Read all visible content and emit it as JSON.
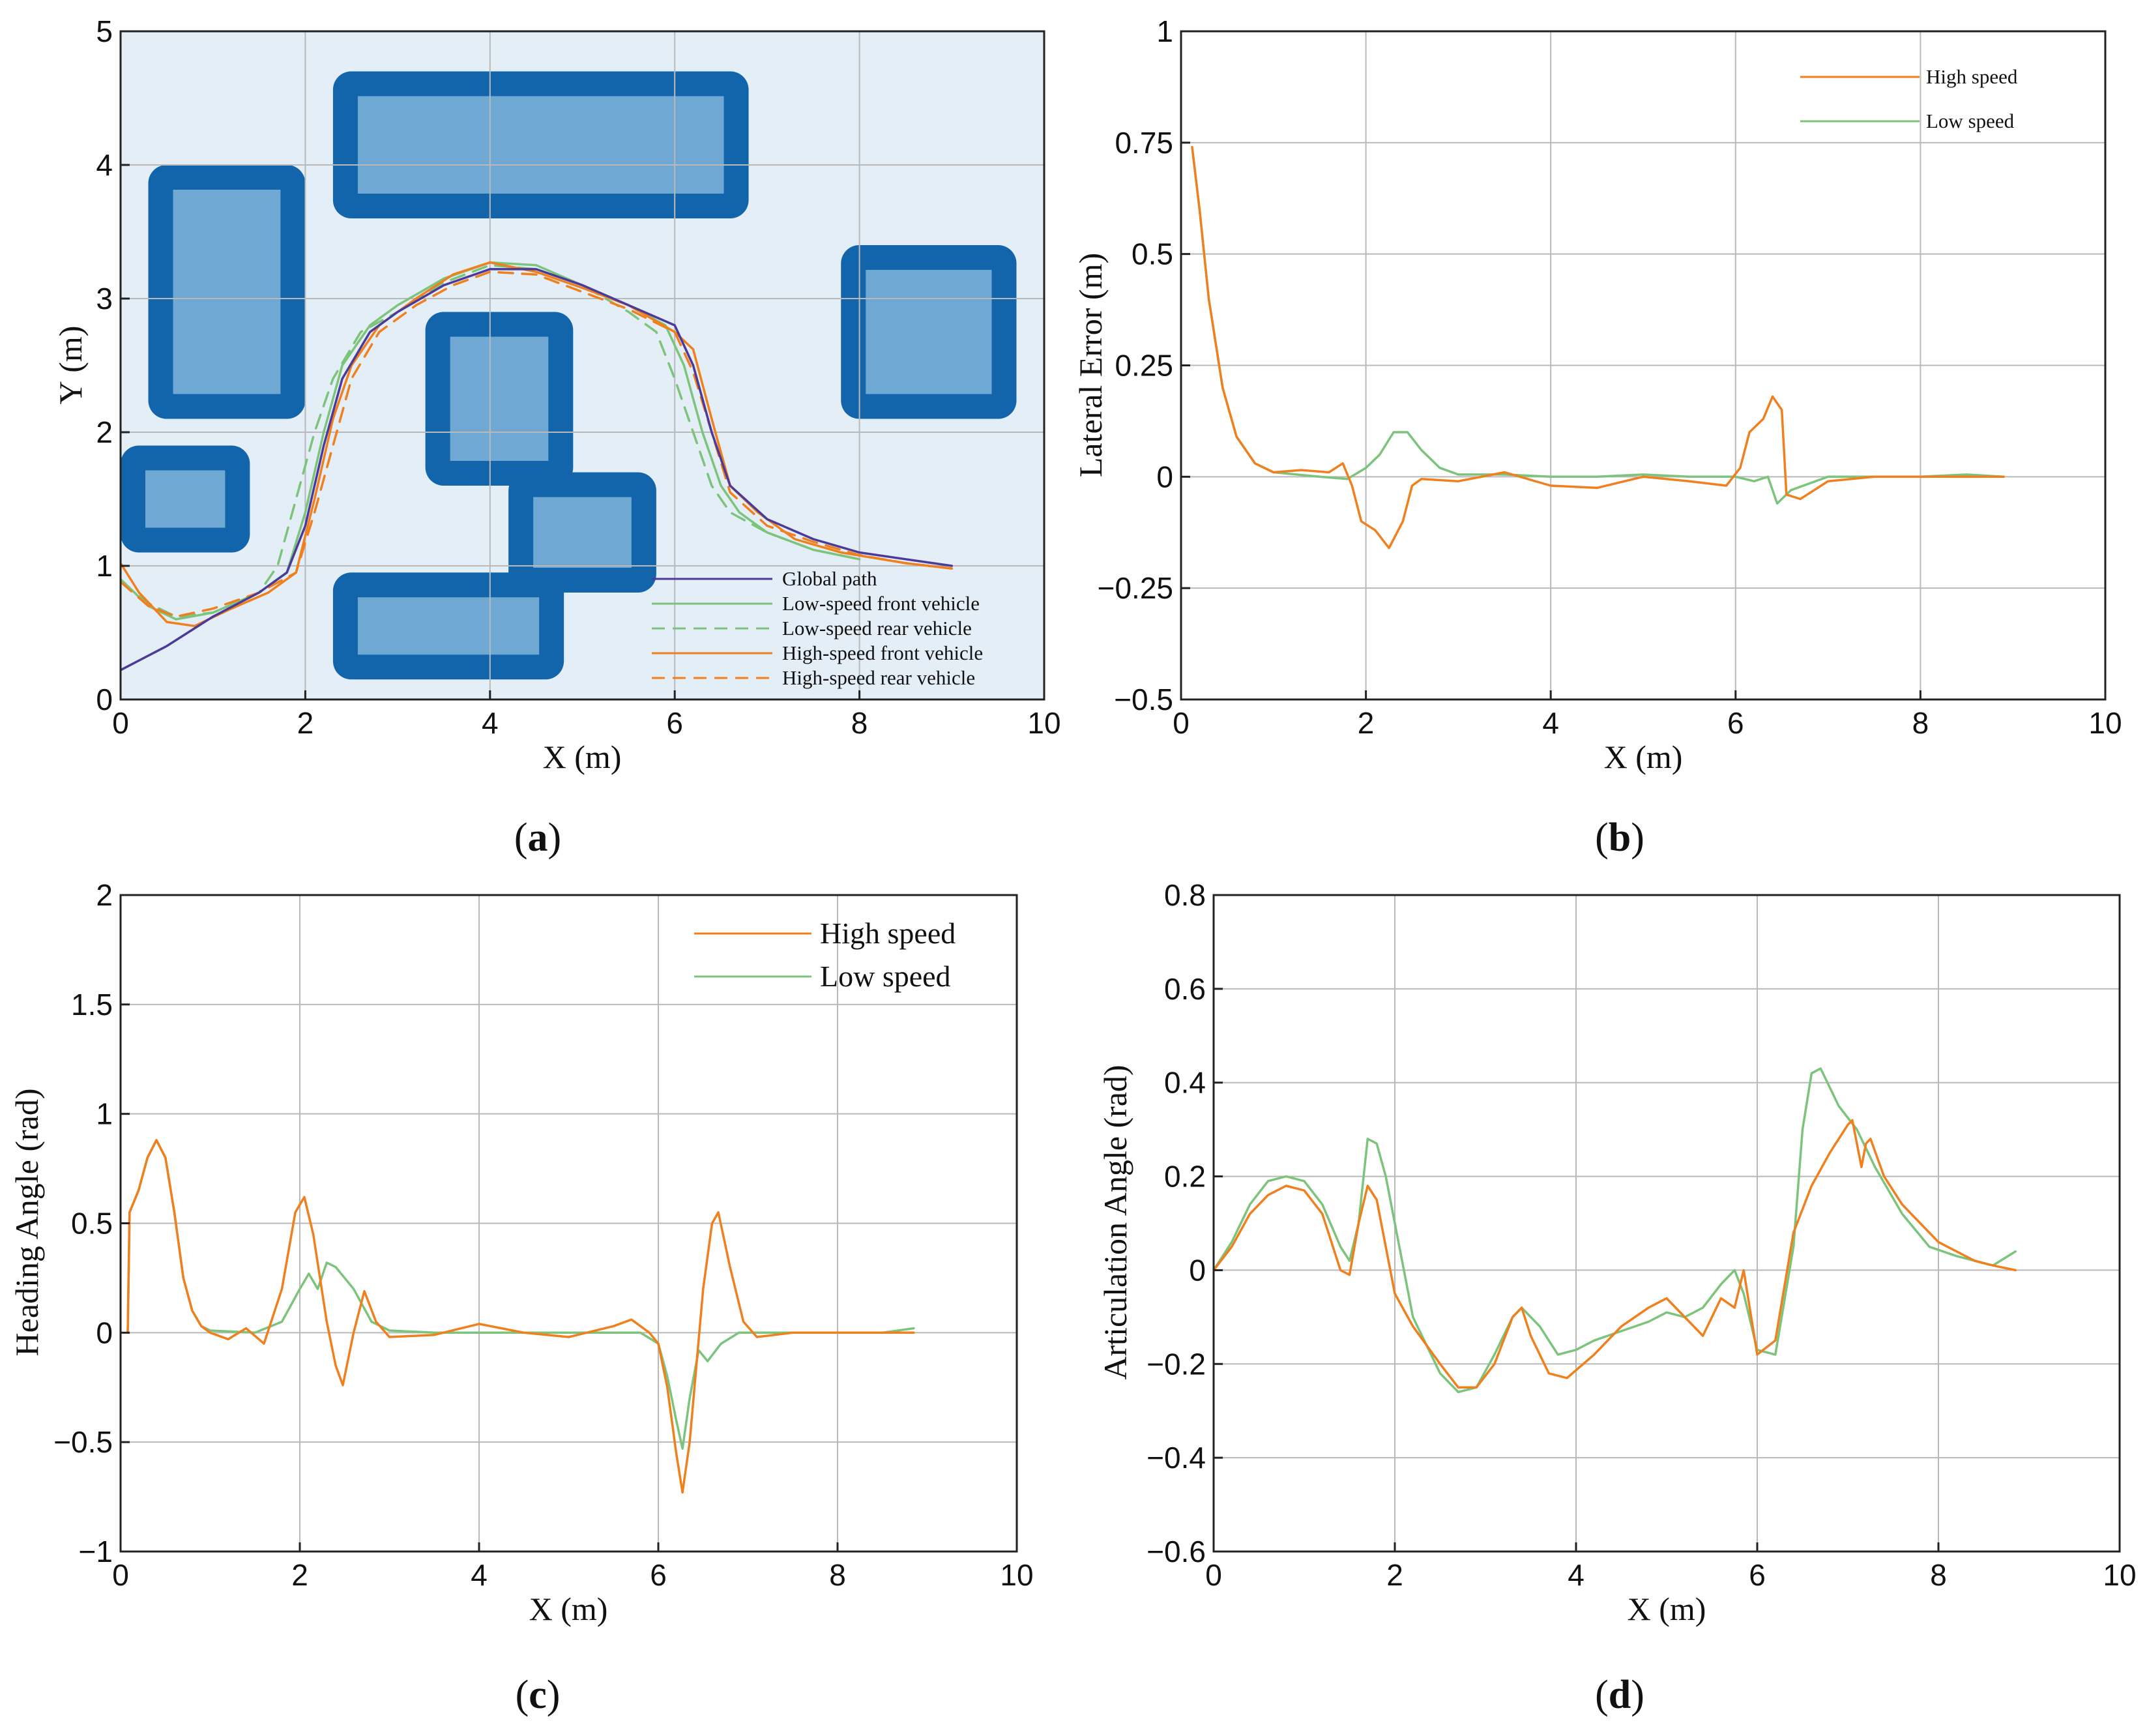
{
  "figure": {
    "colors": {
      "orange": "#f07f1d",
      "green": "#7cc47c",
      "purple": "#4b3a9a",
      "obstacle_dark": "#1264ab",
      "obstacle_light": "#6fa8d2",
      "map_bg": "#e4eef7"
    }
  },
  "chart_data": [
    {
      "id": "a",
      "type": "line",
      "panel_label": "a",
      "xlabel": "X (m)",
      "ylabel": "Y (m)",
      "xlim": [
        0,
        10
      ],
      "ylim": [
        0,
        5
      ],
      "xticks": [
        "0",
        "2",
        "4",
        "6",
        "8",
        "10"
      ],
      "yticks": [
        "0",
        "1",
        "2",
        "3",
        "4",
        "5"
      ],
      "grid": true,
      "legend_position": "bottom-right",
      "obstacles": [
        {
          "name": "top-center",
          "x0": 2.3,
          "x1": 6.8,
          "y0": 3.6,
          "y1": 4.7
        },
        {
          "name": "left-upper",
          "x0": 0.3,
          "x1": 2.0,
          "y0": 2.1,
          "y1": 4.0
        },
        {
          "name": "right",
          "x0": 7.8,
          "x1": 9.7,
          "y0": 2.1,
          "y1": 3.4
        },
        {
          "name": "center",
          "x0": 3.3,
          "x1": 4.9,
          "y0": 1.6,
          "y1": 2.9
        },
        {
          "name": "left-lower",
          "x0": 0.0,
          "x1": 1.4,
          "y0": 1.1,
          "y1": 1.9
        },
        {
          "name": "center-lower",
          "x0": 4.2,
          "x1": 5.8,
          "y0": 0.8,
          "y1": 1.7
        },
        {
          "name": "bottom",
          "x0": 2.3,
          "x1": 4.8,
          "y0": 0.15,
          "y1": 0.95
        }
      ],
      "series": [
        {
          "name": "Global path",
          "color": "#4b3a9a",
          "dash": false,
          "x": [
            0,
            0.5,
            1.0,
            1.5,
            1.8,
            2.0,
            2.2,
            2.4,
            2.7,
            3.0,
            3.5,
            4.0,
            4.5,
            5.0,
            5.5,
            6.0,
            6.2,
            6.4,
            6.6,
            7.0,
            7.5,
            8.0,
            8.5,
            9.0
          ],
          "y": [
            0.22,
            0.4,
            0.62,
            0.8,
            0.95,
            1.3,
            1.9,
            2.4,
            2.75,
            2.9,
            3.1,
            3.22,
            3.22,
            3.1,
            2.95,
            2.8,
            2.5,
            2.0,
            1.6,
            1.35,
            1.2,
            1.1,
            1.05,
            1.0
          ]
        },
        {
          "name": "Low-speed front vehicle",
          "color": "#7cc47c",
          "dash": false,
          "x": [
            0,
            0.3,
            0.6,
            1.0,
            1.5,
            1.8,
            2.0,
            2.2,
            2.4,
            2.7,
            3.0,
            3.5,
            4.0,
            4.5,
            5.0,
            5.5,
            5.9,
            6.1,
            6.3,
            6.5,
            6.7,
            7.0,
            7.5,
            8.0
          ],
          "y": [
            0.9,
            0.7,
            0.6,
            0.65,
            0.8,
            0.95,
            1.4,
            2.0,
            2.5,
            2.8,
            2.95,
            3.15,
            3.27,
            3.25,
            3.1,
            2.95,
            2.8,
            2.5,
            2.0,
            1.6,
            1.4,
            1.25,
            1.12,
            1.05
          ]
        },
        {
          "name": "Low-speed rear vehicle",
          "color": "#7cc47c",
          "dash": true,
          "x": [
            0,
            0.3,
            0.6,
            1.0,
            1.5,
            1.7,
            1.9,
            2.1,
            2.3,
            2.6,
            3.0,
            3.5,
            4.0,
            4.5,
            5.0,
            5.5,
            5.8,
            6.0,
            6.2,
            6.4,
            6.6,
            7.0,
            7.5,
            8.0
          ],
          "y": [
            0.88,
            0.72,
            0.62,
            0.65,
            0.8,
            1.0,
            1.5,
            2.0,
            2.4,
            2.75,
            2.9,
            3.12,
            3.25,
            3.22,
            3.1,
            2.9,
            2.75,
            2.4,
            2.0,
            1.6,
            1.4,
            1.25,
            1.12,
            1.05
          ]
        },
        {
          "name": "High-speed front vehicle",
          "color": "#f07f1d",
          "dash": false,
          "x": [
            0,
            0.2,
            0.5,
            0.8,
            1.2,
            1.6,
            1.9,
            2.1,
            2.3,
            2.5,
            2.8,
            3.2,
            3.6,
            4.0,
            4.5,
            5.0,
            5.5,
            6.0,
            6.2,
            6.4,
            6.6,
            6.9,
            7.3,
            7.8,
            8.5,
            9.0
          ],
          "y": [
            1.02,
            0.8,
            0.58,
            0.55,
            0.68,
            0.8,
            0.95,
            1.5,
            2.1,
            2.5,
            2.8,
            3.0,
            3.18,
            3.27,
            3.2,
            3.08,
            2.95,
            2.75,
            2.62,
            2.1,
            1.6,
            1.4,
            1.2,
            1.1,
            1.02,
            0.98
          ]
        },
        {
          "name": "High-speed rear vehicle",
          "color": "#f07f1d",
          "dash": true,
          "x": [
            0,
            0.3,
            0.6,
            1.0,
            1.5,
            1.9,
            2.1,
            2.3,
            2.5,
            2.8,
            3.2,
            3.6,
            4.0,
            4.5,
            5.0,
            5.5,
            6.0,
            6.2,
            6.4,
            6.6,
            7.0,
            7.5,
            8.0,
            8.5,
            9.0
          ],
          "y": [
            0.88,
            0.7,
            0.62,
            0.68,
            0.8,
            0.95,
            1.4,
            1.9,
            2.4,
            2.75,
            2.95,
            3.1,
            3.2,
            3.18,
            3.05,
            2.92,
            2.75,
            2.45,
            2.0,
            1.55,
            1.3,
            1.18,
            1.08,
            1.02,
            0.98
          ]
        }
      ]
    },
    {
      "id": "b",
      "type": "line",
      "panel_label": "b",
      "xlabel": "X (m)",
      "ylabel": "Lateral Error (m)",
      "xlim": [
        0,
        10
      ],
      "ylim": [
        -0.5,
        1
      ],
      "xticks": [
        "0",
        "2",
        "4",
        "6",
        "8",
        "10"
      ],
      "yticks": [
        "−0.5",
        "−0.25",
        "0",
        "0.25",
        "0.5",
        "0.75",
        "1"
      ],
      "grid": true,
      "legend_position": "top-right",
      "series": [
        {
          "name": "High speed",
          "color": "#f07f1d",
          "x": [
            0.12,
            0.2,
            0.3,
            0.45,
            0.6,
            0.8,
            1.0,
            1.3,
            1.6,
            1.75,
            1.85,
            1.95,
            2.1,
            2.25,
            2.4,
            2.5,
            2.6,
            3.0,
            3.5,
            4.0,
            4.5,
            5.0,
            5.5,
            5.9,
            6.05,
            6.15,
            6.3,
            6.4,
            6.5,
            6.55,
            6.7,
            7.0,
            7.5,
            8.0,
            8.5,
            8.9
          ],
          "y": [
            0.74,
            0.6,
            0.4,
            0.2,
            0.09,
            0.03,
            0.01,
            0.015,
            0.01,
            0.03,
            -0.02,
            -0.1,
            -0.12,
            -0.16,
            -0.1,
            -0.02,
            -0.005,
            -0.01,
            0.01,
            -0.02,
            -0.025,
            0.0,
            -0.01,
            -0.02,
            0.02,
            0.1,
            0.13,
            0.18,
            0.15,
            -0.04,
            -0.05,
            -0.01,
            0.0,
            0.0,
            0.0,
            0.0
          ]
        },
        {
          "name": "Low speed",
          "color": "#7cc47c",
          "x": [
            0.12,
            0.2,
            0.3,
            0.45,
            0.6,
            0.8,
            1.0,
            1.5,
            1.8,
            2.0,
            2.15,
            2.3,
            2.45,
            2.6,
            2.8,
            3.0,
            3.5,
            4.0,
            4.5,
            5.0,
            5.5,
            6.0,
            6.2,
            6.35,
            6.45,
            6.6,
            7.0,
            7.5,
            8.0,
            8.5,
            8.9
          ],
          "y": [
            0.74,
            0.6,
            0.4,
            0.2,
            0.09,
            0.03,
            0.01,
            0.0,
            -0.005,
            0.02,
            0.05,
            0.1,
            0.1,
            0.06,
            0.02,
            0.005,
            0.005,
            0.0,
            0.0,
            0.005,
            0.0,
            0.0,
            -0.01,
            0.0,
            -0.06,
            -0.03,
            0.0,
            0.0,
            0.0,
            0.005,
            0.0
          ]
        }
      ]
    },
    {
      "id": "c",
      "type": "line",
      "panel_label": "c",
      "xlabel": "X (m)",
      "ylabel": "Heading Angle (rad)",
      "xlim": [
        0,
        10
      ],
      "ylim": [
        -1,
        2
      ],
      "xticks": [
        "0",
        "2",
        "4",
        "6",
        "8",
        "10"
      ],
      "yticks": [
        "−1",
        "−0.5",
        "0",
        "0.5",
        "1",
        "1.5",
        "2"
      ],
      "grid": true,
      "legend_position": "top-right",
      "series": [
        {
          "name": "High speed",
          "color": "#f07f1d",
          "x": [
            0.08,
            0.1,
            0.2,
            0.3,
            0.4,
            0.5,
            0.6,
            0.7,
            0.8,
            0.9,
            1.0,
            1.2,
            1.4,
            1.6,
            1.8,
            1.95,
            2.05,
            2.15,
            2.3,
            2.4,
            2.48,
            2.6,
            2.72,
            2.85,
            3.0,
            3.5,
            4.0,
            4.5,
            5.0,
            5.5,
            5.7,
            5.9,
            6.0,
            6.1,
            6.2,
            6.27,
            6.35,
            6.5,
            6.6,
            6.67,
            6.8,
            6.95,
            7.1,
            7.5,
            8.0,
            8.5,
            8.85
          ],
          "y": [
            0.0,
            0.55,
            0.65,
            0.8,
            0.88,
            0.8,
            0.55,
            0.25,
            0.1,
            0.03,
            0.0,
            -0.03,
            0.02,
            -0.05,
            0.2,
            0.55,
            0.62,
            0.45,
            0.05,
            -0.15,
            -0.24,
            0.0,
            0.19,
            0.05,
            -0.02,
            -0.01,
            0.04,
            0.0,
            -0.02,
            0.03,
            0.06,
            0.0,
            -0.05,
            -0.25,
            -0.55,
            -0.73,
            -0.5,
            0.2,
            0.5,
            0.55,
            0.3,
            0.05,
            -0.02,
            0.0,
            0.0,
            0.0,
            0.0
          ]
        },
        {
          "name": "Low speed",
          "color": "#7cc47c",
          "x": [
            0.08,
            0.1,
            0.2,
            0.3,
            0.4,
            0.5,
            0.6,
            0.7,
            0.8,
            0.9,
            1.0,
            1.5,
            1.8,
            2.0,
            2.1,
            2.2,
            2.3,
            2.4,
            2.6,
            2.8,
            3.0,
            3.5,
            4.0,
            5.0,
            5.5,
            5.8,
            6.0,
            6.1,
            6.2,
            6.27,
            6.35,
            6.45,
            6.55,
            6.7,
            6.9,
            7.0,
            7.5,
            8.0,
            8.5,
            8.85
          ],
          "y": [
            0.0,
            0.55,
            0.65,
            0.8,
            0.88,
            0.8,
            0.55,
            0.25,
            0.1,
            0.03,
            0.01,
            0.0,
            0.05,
            0.2,
            0.27,
            0.2,
            0.32,
            0.3,
            0.2,
            0.05,
            0.01,
            0.0,
            0.0,
            0.0,
            0.0,
            0.0,
            -0.05,
            -0.2,
            -0.4,
            -0.53,
            -0.3,
            -0.08,
            -0.13,
            -0.05,
            0.0,
            0.0,
            0.0,
            0.0,
            0.0,
            0.02
          ]
        }
      ]
    },
    {
      "id": "d",
      "type": "line",
      "panel_label": "d",
      "xlabel": "X (m)",
      "ylabel": "Articulation Angle (rad)",
      "xlim": [
        0,
        10
      ],
      "ylim": [
        -0.6,
        0.8
      ],
      "xticks": [
        "0",
        "2",
        "4",
        "6",
        "8",
        "10"
      ],
      "yticks": [
        "−0.6",
        "−0.4",
        "−0.2",
        "0",
        "0.2",
        "0.4",
        "0.6",
        "0.8"
      ],
      "grid": true,
      "legend_position": "none",
      "series": [
        {
          "name": "High speed",
          "color": "#f07f1d",
          "x": [
            0,
            0.2,
            0.4,
            0.6,
            0.8,
            1.0,
            1.2,
            1.4,
            1.5,
            1.6,
            1.7,
            1.8,
            1.9,
            2.0,
            2.2,
            2.5,
            2.7,
            2.9,
            3.1,
            3.3,
            3.4,
            3.5,
            3.7,
            3.9,
            4.2,
            4.5,
            4.8,
            5.0,
            5.2,
            5.4,
            5.5,
            5.6,
            5.75,
            5.85,
            6.0,
            6.2,
            6.4,
            6.6,
            6.8,
            7.0,
            7.05,
            7.15,
            7.2,
            7.25,
            7.4,
            7.6,
            7.8,
            8.0,
            8.2,
            8.4,
            8.6,
            8.85
          ],
          "y": [
            0.0,
            0.05,
            0.12,
            0.16,
            0.18,
            0.17,
            0.12,
            0.0,
            -0.01,
            0.1,
            0.18,
            0.15,
            0.05,
            -0.05,
            -0.12,
            -0.2,
            -0.25,
            -0.25,
            -0.2,
            -0.1,
            -0.08,
            -0.14,
            -0.22,
            -0.23,
            -0.18,
            -0.12,
            -0.08,
            -0.06,
            -0.1,
            -0.14,
            -0.1,
            -0.06,
            -0.08,
            0.0,
            -0.18,
            -0.15,
            0.08,
            0.18,
            0.25,
            0.31,
            0.32,
            0.22,
            0.27,
            0.28,
            0.2,
            0.14,
            0.1,
            0.06,
            0.04,
            0.02,
            0.01,
            0.0
          ]
        },
        {
          "name": "Low speed",
          "color": "#7cc47c",
          "x": [
            0,
            0.2,
            0.4,
            0.6,
            0.8,
            1.0,
            1.2,
            1.4,
            1.5,
            1.6,
            1.7,
            1.8,
            1.9,
            2.0,
            2.2,
            2.5,
            2.7,
            2.9,
            3.1,
            3.3,
            3.4,
            3.6,
            3.8,
            4.0,
            4.2,
            4.5,
            4.8,
            5.0,
            5.2,
            5.4,
            5.6,
            5.75,
            5.85,
            6.0,
            6.2,
            6.4,
            6.5,
            6.6,
            6.7,
            6.9,
            7.1,
            7.3,
            7.6,
            7.9,
            8.2,
            8.4,
            8.6,
            8.85
          ],
          "y": [
            0.0,
            0.06,
            0.14,
            0.19,
            0.2,
            0.19,
            0.14,
            0.05,
            0.02,
            0.1,
            0.28,
            0.27,
            0.2,
            0.1,
            -0.1,
            -0.22,
            -0.26,
            -0.25,
            -0.18,
            -0.1,
            -0.08,
            -0.12,
            -0.18,
            -0.17,
            -0.15,
            -0.13,
            -0.11,
            -0.09,
            -0.1,
            -0.08,
            -0.03,
            0.0,
            -0.05,
            -0.17,
            -0.18,
            0.05,
            0.3,
            0.42,
            0.43,
            0.35,
            0.3,
            0.22,
            0.12,
            0.05,
            0.03,
            0.02,
            0.01,
            0.04
          ]
        }
      ]
    }
  ]
}
